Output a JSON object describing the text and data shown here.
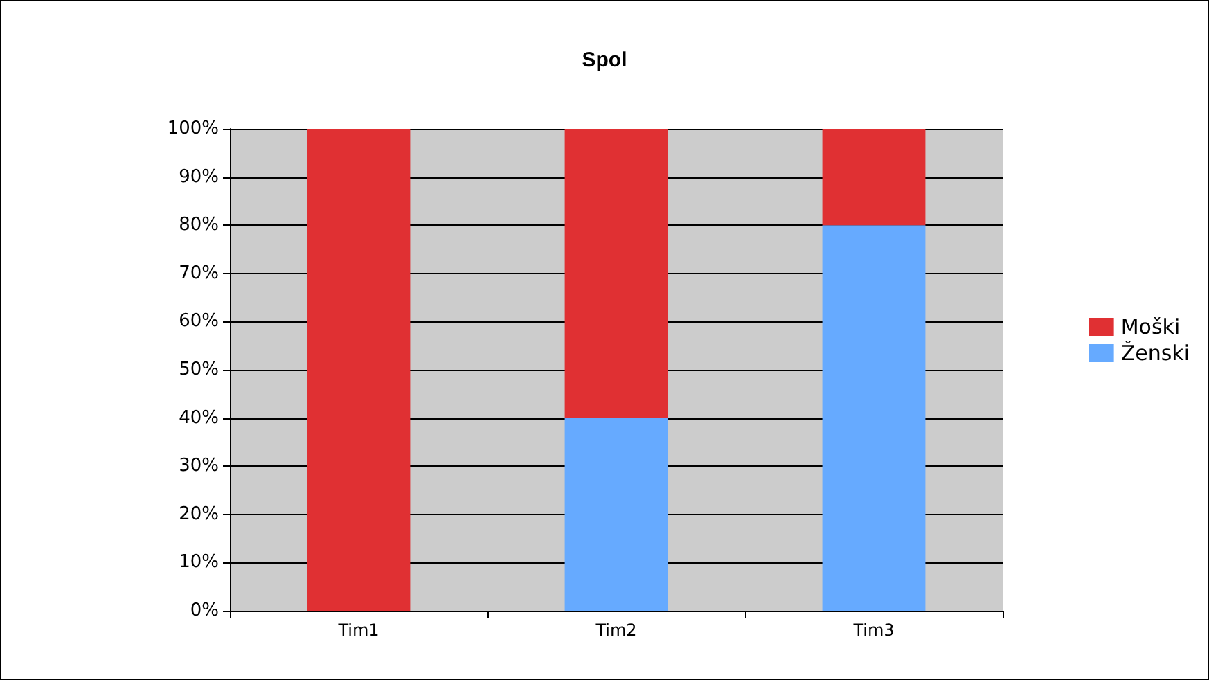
{
  "chart_data": {
    "type": "bar",
    "title": "Spol",
    "categories": [
      "Tim1",
      "Tim2",
      "Tim3"
    ],
    "stacked": true,
    "series": [
      {
        "name": "Ženski",
        "color": "#66aaff",
        "values": [
          0,
          40,
          80
        ]
      },
      {
        "name": "Moški",
        "color": "#e03033",
        "values": [
          100,
          60,
          20
        ]
      }
    ],
    "ylim": [
      0,
      100
    ],
    "yticks": [
      {
        "value": 0,
        "label": "0%"
      },
      {
        "value": 10,
        "label": "10%"
      },
      {
        "value": 20,
        "label": "20%"
      },
      {
        "value": 30,
        "label": "30%"
      },
      {
        "value": 40,
        "label": "40%"
      },
      {
        "value": 50,
        "label": "50%"
      },
      {
        "value": 60,
        "label": "60%"
      },
      {
        "value": 70,
        "label": "70%"
      },
      {
        "value": 80,
        "label": "80%"
      },
      {
        "value": 90,
        "label": "90%"
      },
      {
        "value": 100,
        "label": "100%"
      }
    ],
    "grid": "y",
    "legend": "right"
  }
}
